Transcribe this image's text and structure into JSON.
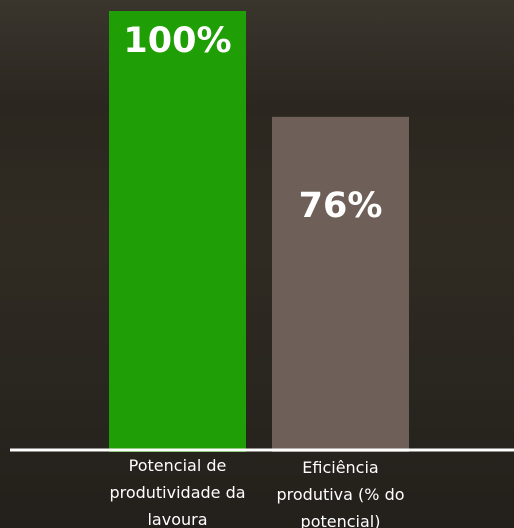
{
  "chart_data": {
    "type": "bar",
    "categories": [
      "Potencial de produtividade da lavoura",
      "Eficiência produtiva (% do potencial)"
    ],
    "values": [
      100,
      76
    ],
    "value_labels": [
      "100%",
      "76%"
    ],
    "colors": [
      "#1f9e05",
      "#6e6059"
    ],
    "ylim": [
      0,
      100
    ]
  }
}
